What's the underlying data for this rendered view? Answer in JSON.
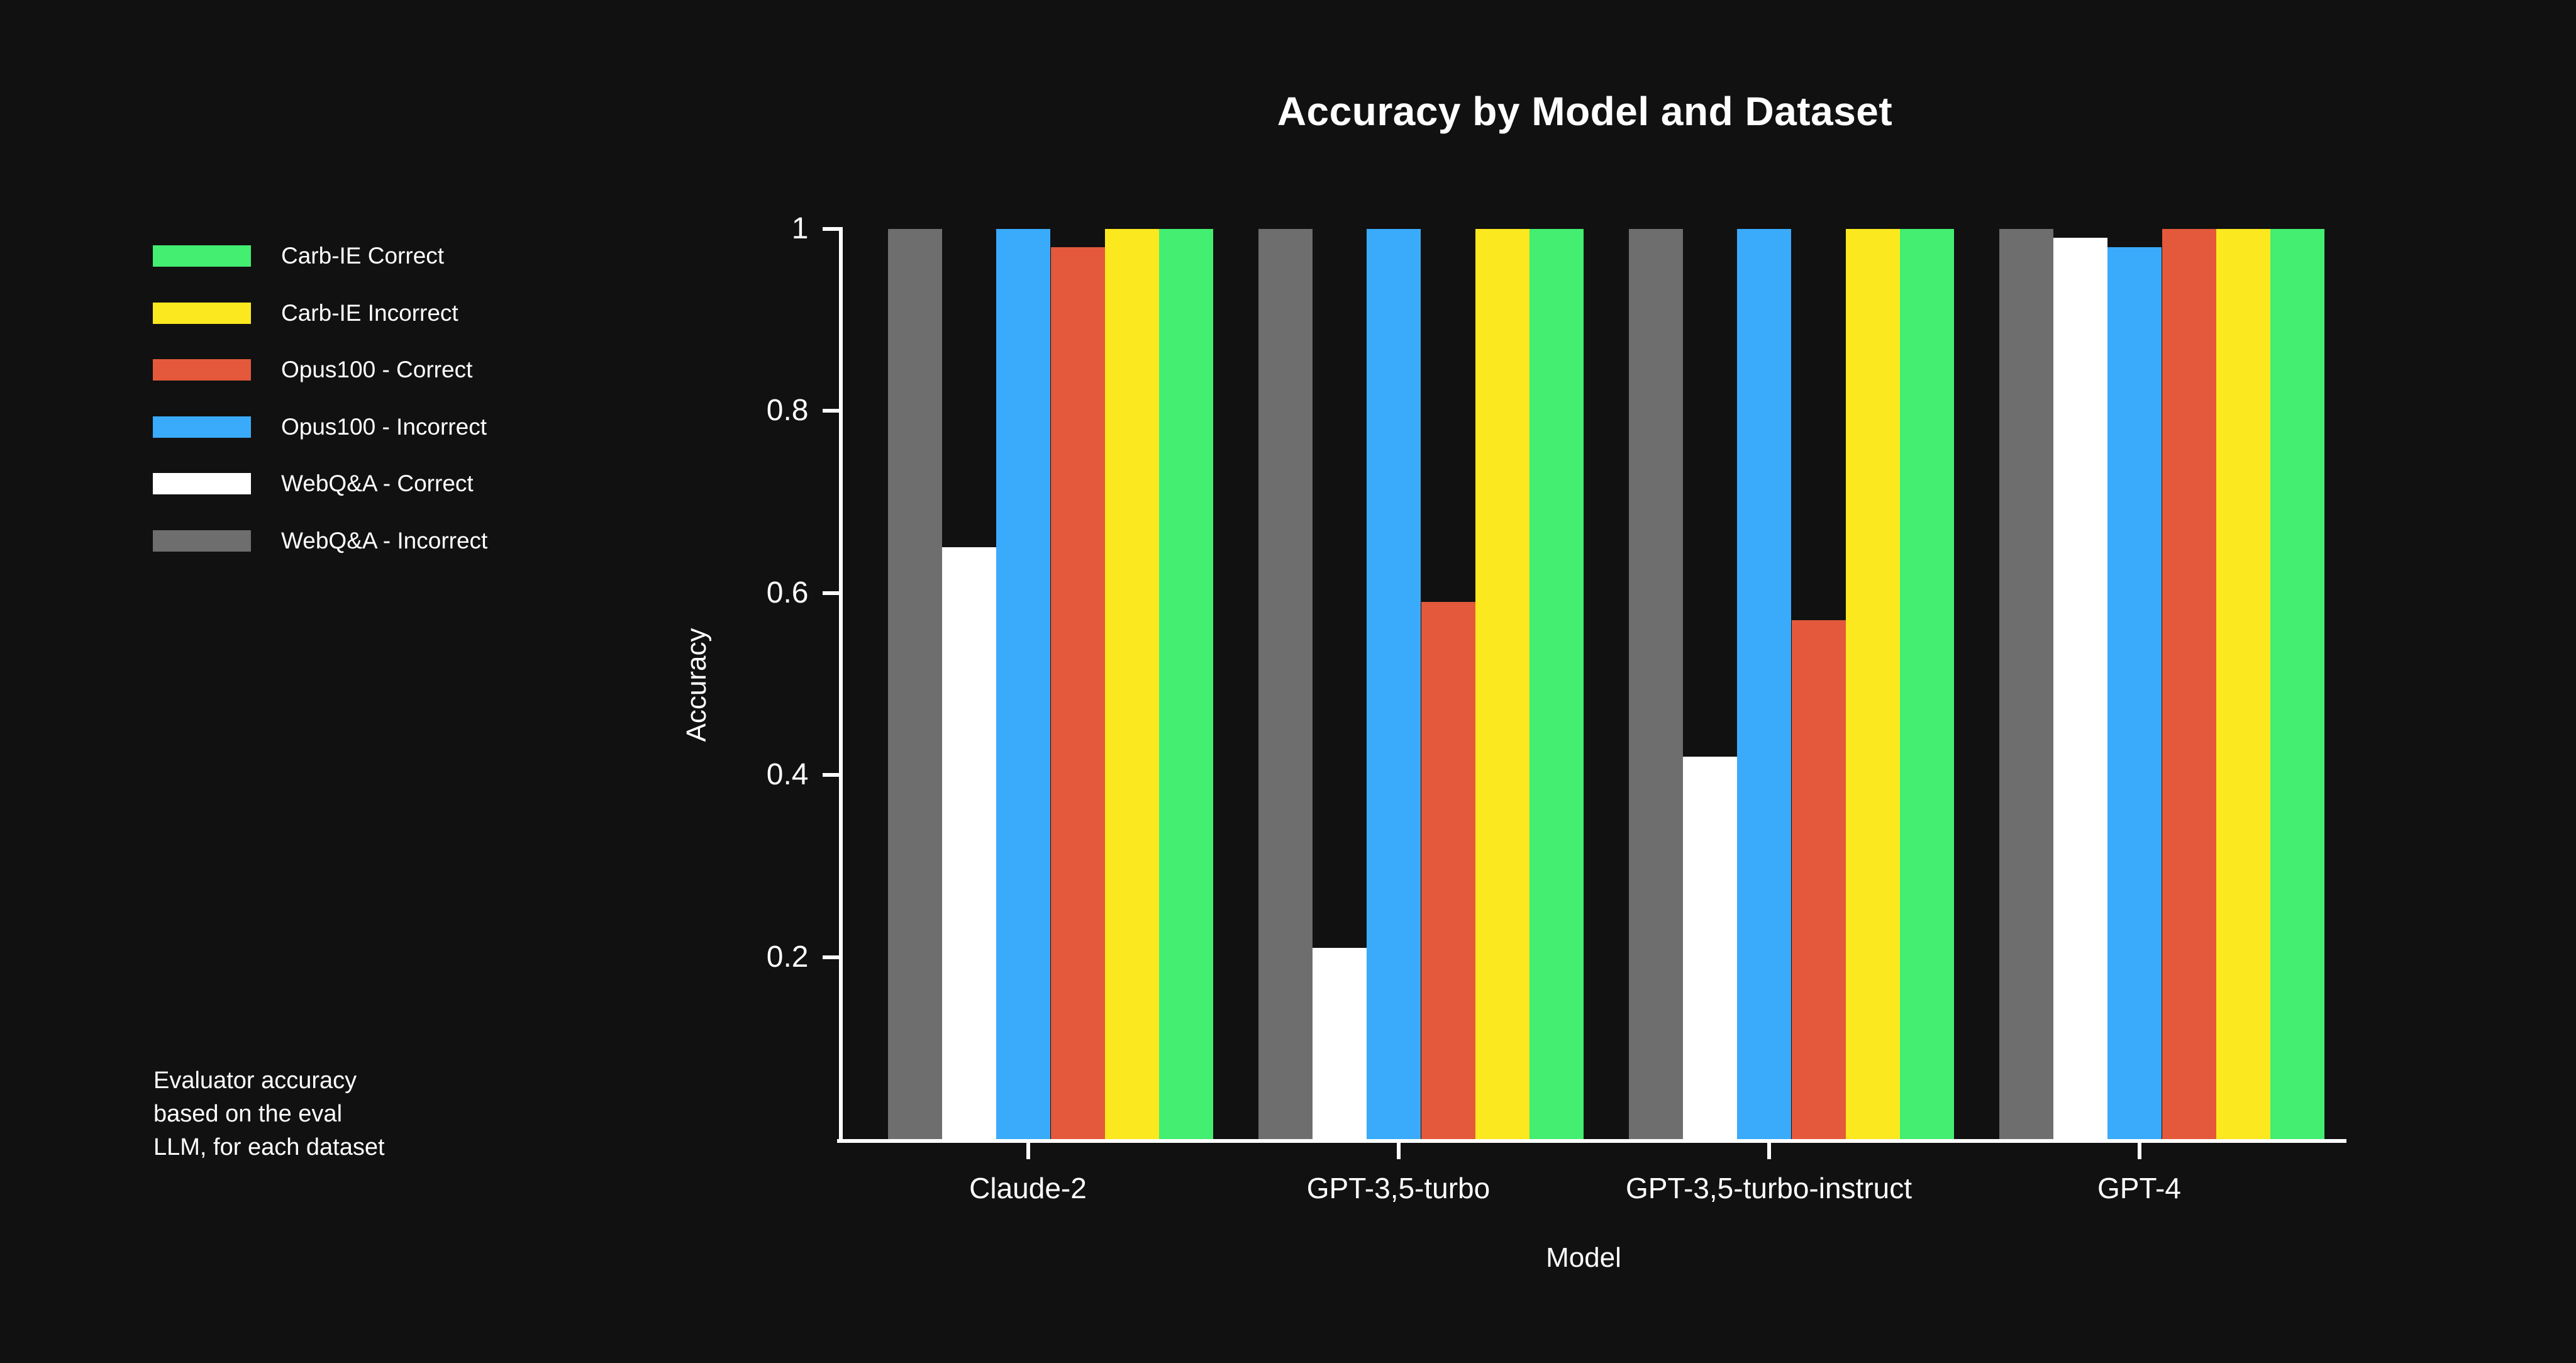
{
  "title": "Accuracy by Model and Dataset",
  "caption": {
    "line1": "Evaluator accuracy",
    "line2": "based on the eval",
    "line3": "LLM, for each dataset"
  },
  "colors": {
    "background": "#111111",
    "text": "#ffffff",
    "axis": "#ffffff",
    "green": "#43ee70",
    "yellow": "#fce81f",
    "red": "#e4593b",
    "blue": "#3aabfb",
    "white": "#ffffff",
    "gray": "#6e6e6e"
  },
  "chart_data": {
    "type": "bar",
    "title": "Accuracy by Model and Dataset",
    "xlabel": "Model",
    "ylabel": "Accuracy",
    "ylim": [
      0,
      1
    ],
    "grid": false,
    "legend_position": "left",
    "y_ticks": [
      {
        "value": 1,
        "label": "1"
      },
      {
        "value": 0.8,
        "label": "0.8"
      },
      {
        "value": 0.6,
        "label": "0.6"
      },
      {
        "value": 0.4,
        "label": "0.4"
      },
      {
        "value": 0.2,
        "label": "0.2"
      }
    ],
    "categories": [
      "Claude-2",
      "GPT-3,5-turbo",
      "GPT-3,5-turbo-instruct",
      "GPT-4"
    ],
    "series": [
      {
        "name": "WebQ&A - Incorrect",
        "color": "#6e6e6e",
        "values": [
          1,
          1,
          1,
          1
        ]
      },
      {
        "name": "WebQ&A - Correct",
        "color": "#ffffff",
        "values": [
          0.65,
          0.21,
          0.42,
          0.99
        ]
      },
      {
        "name": "Opus100 - Incorrect",
        "color": "#3aabfb",
        "values": [
          1,
          1,
          1,
          0.98
        ]
      },
      {
        "name": "Opus100 - Correct",
        "color": "#e4593b",
        "values": [
          0.98,
          0.59,
          0.57,
          1
        ]
      },
      {
        "name": "Carb-IE Incorrect",
        "color": "#fce81f",
        "values": [
          1,
          1,
          1,
          1
        ]
      },
      {
        "name": "Carb-IE Correct",
        "color": "#43ee70",
        "values": [
          1,
          1,
          1,
          1
        ]
      }
    ],
    "legend": [
      {
        "label": "Carb-IE Correct",
        "color": "#43ee70"
      },
      {
        "label": "Carb-IE Incorrect",
        "color": "#fce81f"
      },
      {
        "label": "Opus100 - Correct",
        "color": "#e4593b"
      },
      {
        "label": "Opus100 - Incorrect",
        "color": "#3aabfb"
      },
      {
        "label": "WebQ&A - Correct",
        "color": "#ffffff"
      },
      {
        "label": "WebQ&A - Incorrect",
        "color": "#6e6e6e"
      }
    ]
  }
}
